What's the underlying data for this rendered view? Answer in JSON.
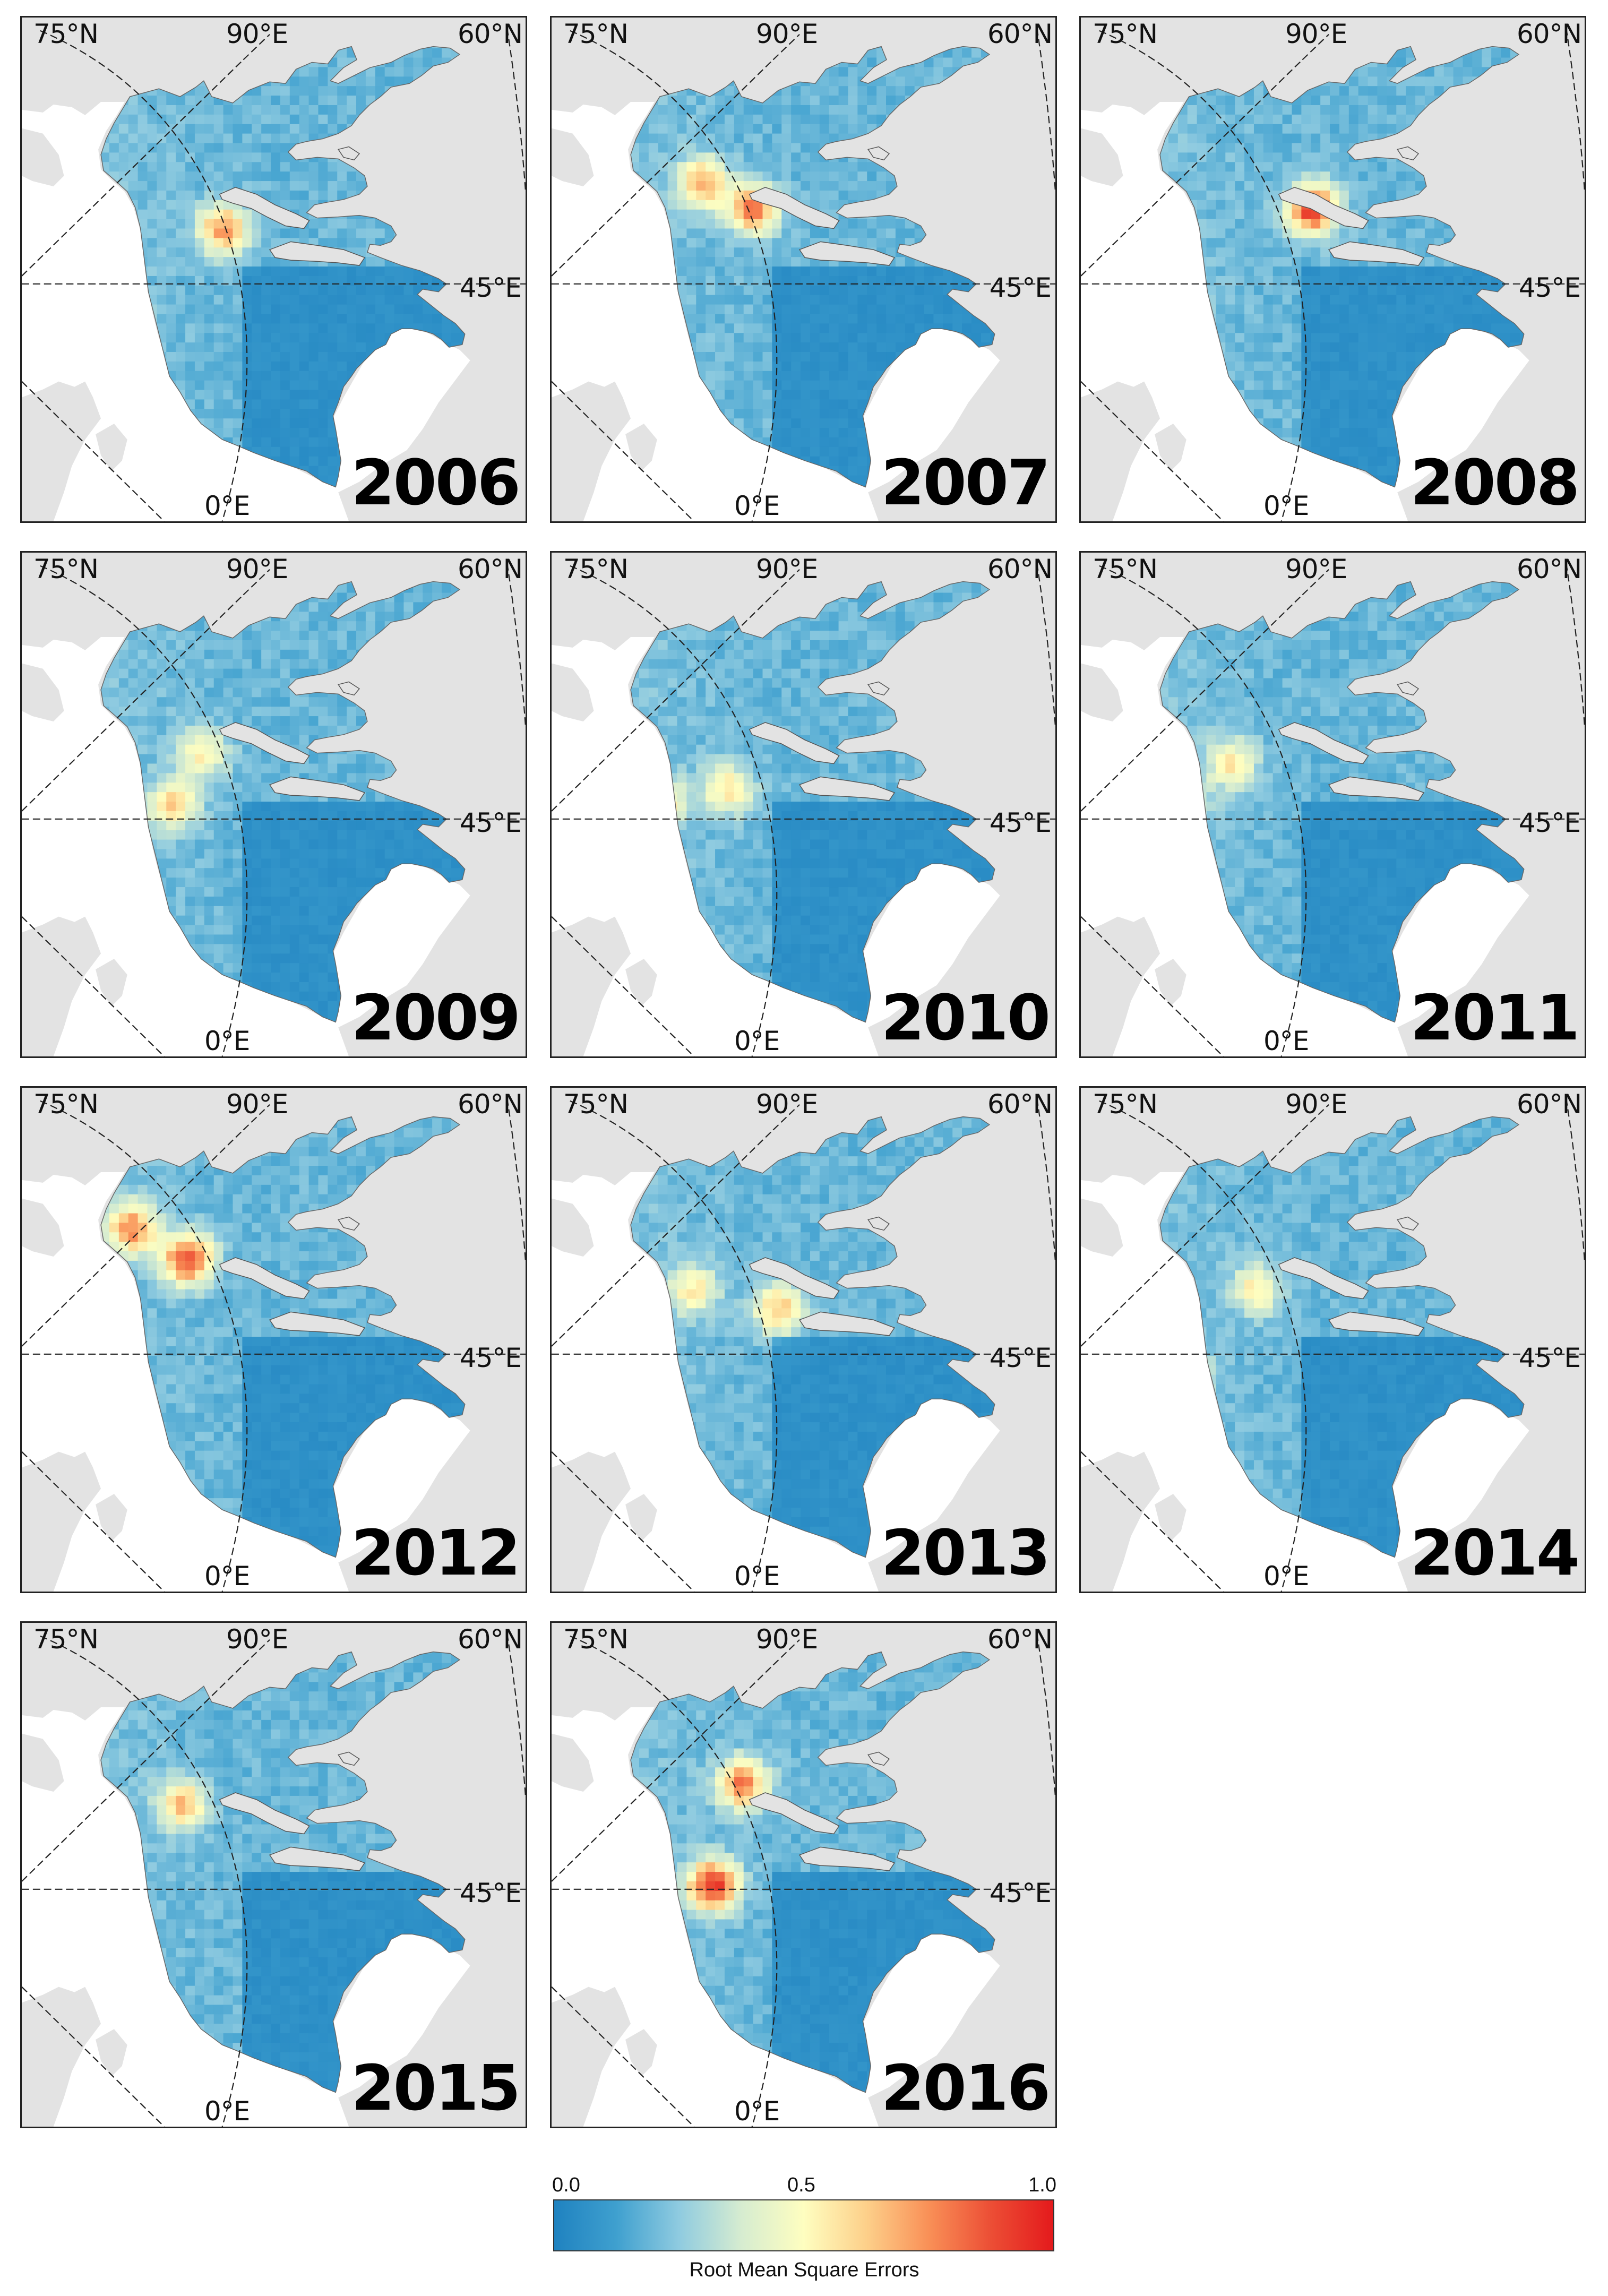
{
  "panels": [
    {
      "year": "2006",
      "hot": [
        [
          0.4,
          0.42,
          0.55
        ],
        [
          0.18,
          0.6,
          0.45
        ]
      ]
    },
    {
      "year": "2007",
      "hot": [
        [
          0.4,
          0.38,
          0.6
        ],
        [
          0.3,
          0.33,
          0.5
        ]
      ]
    },
    {
      "year": "2008",
      "hot": [
        [
          0.46,
          0.38,
          0.75
        ],
        [
          0.18,
          0.55,
          0.4
        ]
      ]
    },
    {
      "year": "2009",
      "hot": [
        [
          0.3,
          0.5,
          0.4
        ],
        [
          0.36,
          0.4,
          0.35
        ]
      ]
    },
    {
      "year": "2010",
      "hot": [
        [
          0.35,
          0.47,
          0.38
        ],
        [
          0.22,
          0.5,
          0.35
        ]
      ]
    },
    {
      "year": "2011",
      "hot": [
        [
          0.3,
          0.42,
          0.35
        ],
        [
          0.2,
          0.5,
          0.3
        ]
      ]
    },
    {
      "year": "2012",
      "hot": [
        [
          0.33,
          0.34,
          0.7
        ],
        [
          0.22,
          0.28,
          0.55
        ]
      ]
    },
    {
      "year": "2013",
      "hot": [
        [
          0.45,
          0.44,
          0.45
        ],
        [
          0.28,
          0.4,
          0.35
        ]
      ]
    },
    {
      "year": "2014",
      "hot": [
        [
          0.2,
          0.57,
          0.5
        ],
        [
          0.35,
          0.4,
          0.35
        ]
      ]
    },
    {
      "year": "2015",
      "hot": [
        [
          0.32,
          0.36,
          0.45
        ],
        [
          0.16,
          0.66,
          0.55
        ]
      ]
    },
    {
      "year": "2016",
      "hot": [
        [
          0.38,
          0.32,
          0.6
        ],
        [
          0.32,
          0.52,
          0.75
        ]
      ]
    }
  ],
  "grid_labels": {
    "lat75": "75°N",
    "lon90": "90°E",
    "lat60": "60°N",
    "lon45": "45°E",
    "lon0": "0°E"
  },
  "colors": {
    "land": "#e3e3e3",
    "background": "#ffffff",
    "rmse_low": "#1f7fbf",
    "rmse_mid": "#fefec0",
    "rmse_high": "#e41a1c"
  },
  "legend": {
    "ticks": [
      "0.0",
      "0.5",
      "1.0"
    ],
    "label": "Root Mean Square Errors",
    "stops": [
      "#1f82c0",
      "#3fa0cf",
      "#8fcbe0",
      "#d6ecd0",
      "#fefec0",
      "#fdd08a",
      "#f99057",
      "#ec4e35",
      "#e41a1c"
    ]
  }
}
